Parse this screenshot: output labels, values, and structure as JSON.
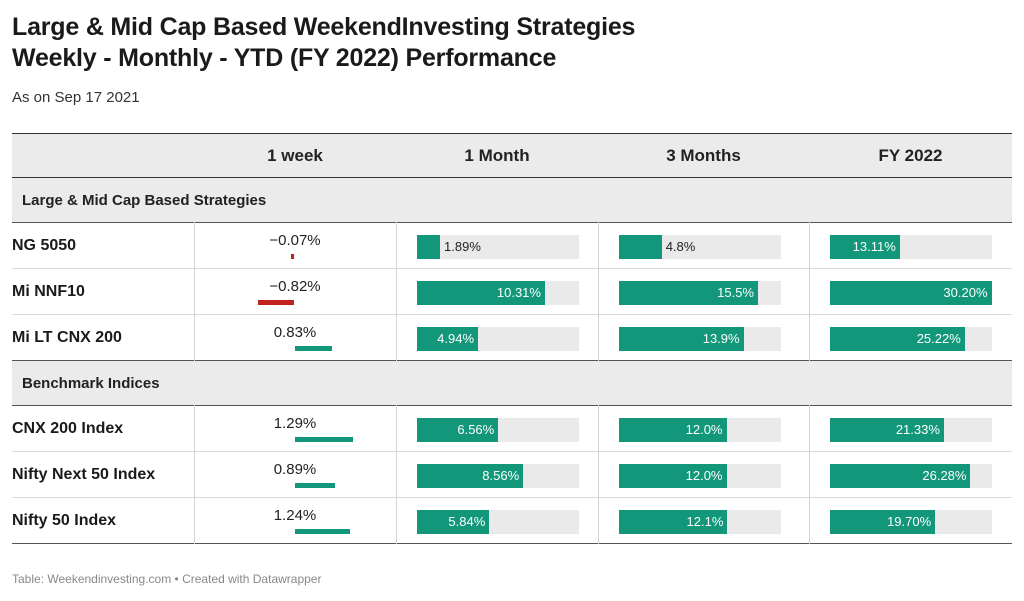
{
  "title_line1": "Large & Mid Cap Based WeekendInvesting Strategies",
  "title_line2": "Weekly - Monthly - YTD (FY 2022) Performance",
  "subtitle": "As on Sep 17 2021",
  "footer": "Table: Weekendinvesting.com • Created with Datawrapper",
  "colors": {
    "positive": "#12977a",
    "negative": "#c0221d",
    "header_bg": "#ebebeb",
    "track": "#eaeaea"
  },
  "chart_data": {
    "type": "table",
    "columns": [
      "",
      "1 week",
      "1 Month",
      "3 Months",
      "FY 2022"
    ],
    "groups": [
      {
        "label": "Large & Mid Cap Based Strategies",
        "rows": [
          {
            "name": "NG 5050",
            "week": -0.07,
            "week_label": "−0.07%",
            "month": 1.89,
            "month_label": "1.89%",
            "months3": 4.8,
            "months3_label": "4.8%",
            "fy": 13.11,
            "fy_label": "13.11%"
          },
          {
            "name": "Mi NNF10",
            "week": -0.82,
            "week_label": "−0.82%",
            "month": 10.31,
            "month_label": "10.31%",
            "months3": 15.5,
            "months3_label": "15.5%",
            "fy": 30.2,
            "fy_label": "30.20%"
          },
          {
            "name": "Mi LT CNX 200",
            "week": 0.83,
            "week_label": "0.83%",
            "month": 4.94,
            "month_label": "4.94%",
            "months3": 13.9,
            "months3_label": "13.9%",
            "fy": 25.22,
            "fy_label": "25.22%"
          }
        ]
      },
      {
        "label": "Benchmark Indices",
        "rows": [
          {
            "name": "CNX 200 Index",
            "week": 1.29,
            "week_label": "1.29%",
            "month": 6.56,
            "month_label": "6.56%",
            "months3": 12.0,
            "months3_label": "12.0%",
            "fy": 21.33,
            "fy_label": "21.33%"
          },
          {
            "name": "Nifty Next 50 Index",
            "week": 0.89,
            "week_label": "0.89%",
            "month": 8.56,
            "month_label": "8.56%",
            "months3": 12.0,
            "months3_label": "12.0%",
            "fy": 26.28,
            "fy_label": "26.28%"
          },
          {
            "name": "Nifty 50 Index",
            "week": 1.24,
            "week_label": "1.24%",
            "month": 5.84,
            "month_label": "5.84%",
            "months3": 12.1,
            "months3_label": "12.1%",
            "fy": 19.7,
            "fy_label": "19.70%"
          }
        ]
      }
    ],
    "scales": {
      "week_max_abs": 1.29,
      "month_max": 13.0,
      "months3_max": 18.0,
      "fy_max": 30.2
    }
  }
}
